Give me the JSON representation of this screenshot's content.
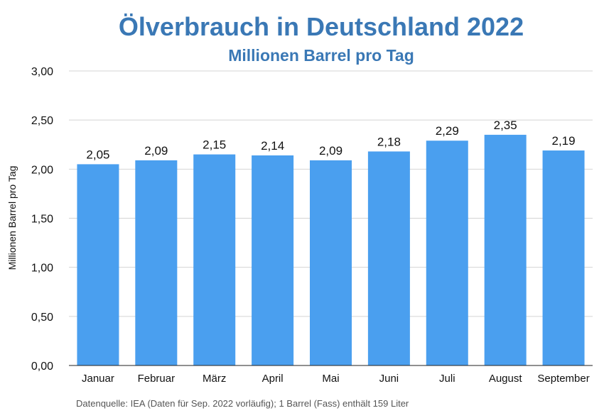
{
  "chart_data": {
    "type": "bar",
    "title": "Ölverbrauch in Deutschland 2022",
    "subtitle": "Millionen Barrel pro Tag",
    "ylabel": "Millionen Barrel pro Tag",
    "xlabel": "",
    "categories": [
      "Januar",
      "Februar",
      "März",
      "April",
      "Mai",
      "Juni",
      "Juli",
      "August",
      "September"
    ],
    "values": [
      2.05,
      2.09,
      2.15,
      2.14,
      2.09,
      2.18,
      2.29,
      2.35,
      2.19
    ],
    "value_labels": [
      "2,05",
      "2,09",
      "2,15",
      "2,14",
      "2,09",
      "2,18",
      "2,29",
      "2,35",
      "2,19"
    ],
    "ylim": [
      0,
      3
    ],
    "yticks": [
      0,
      0.5,
      1,
      1.5,
      2,
      2.5,
      3
    ],
    "ytick_labels": [
      "0,00",
      "0,50",
      "1,00",
      "1,50",
      "2,00",
      "2,50",
      "3,00"
    ],
    "grid": true,
    "legend": "none",
    "bar_color": "#4a9fef",
    "title_color": "#3a78b5",
    "grid_color": "#d4d4d4",
    "source": "Datenquelle: IEA (Daten für Sep. 2022 vorläufig); 1 Barrel (Fass) enthält 159 Liter"
  }
}
